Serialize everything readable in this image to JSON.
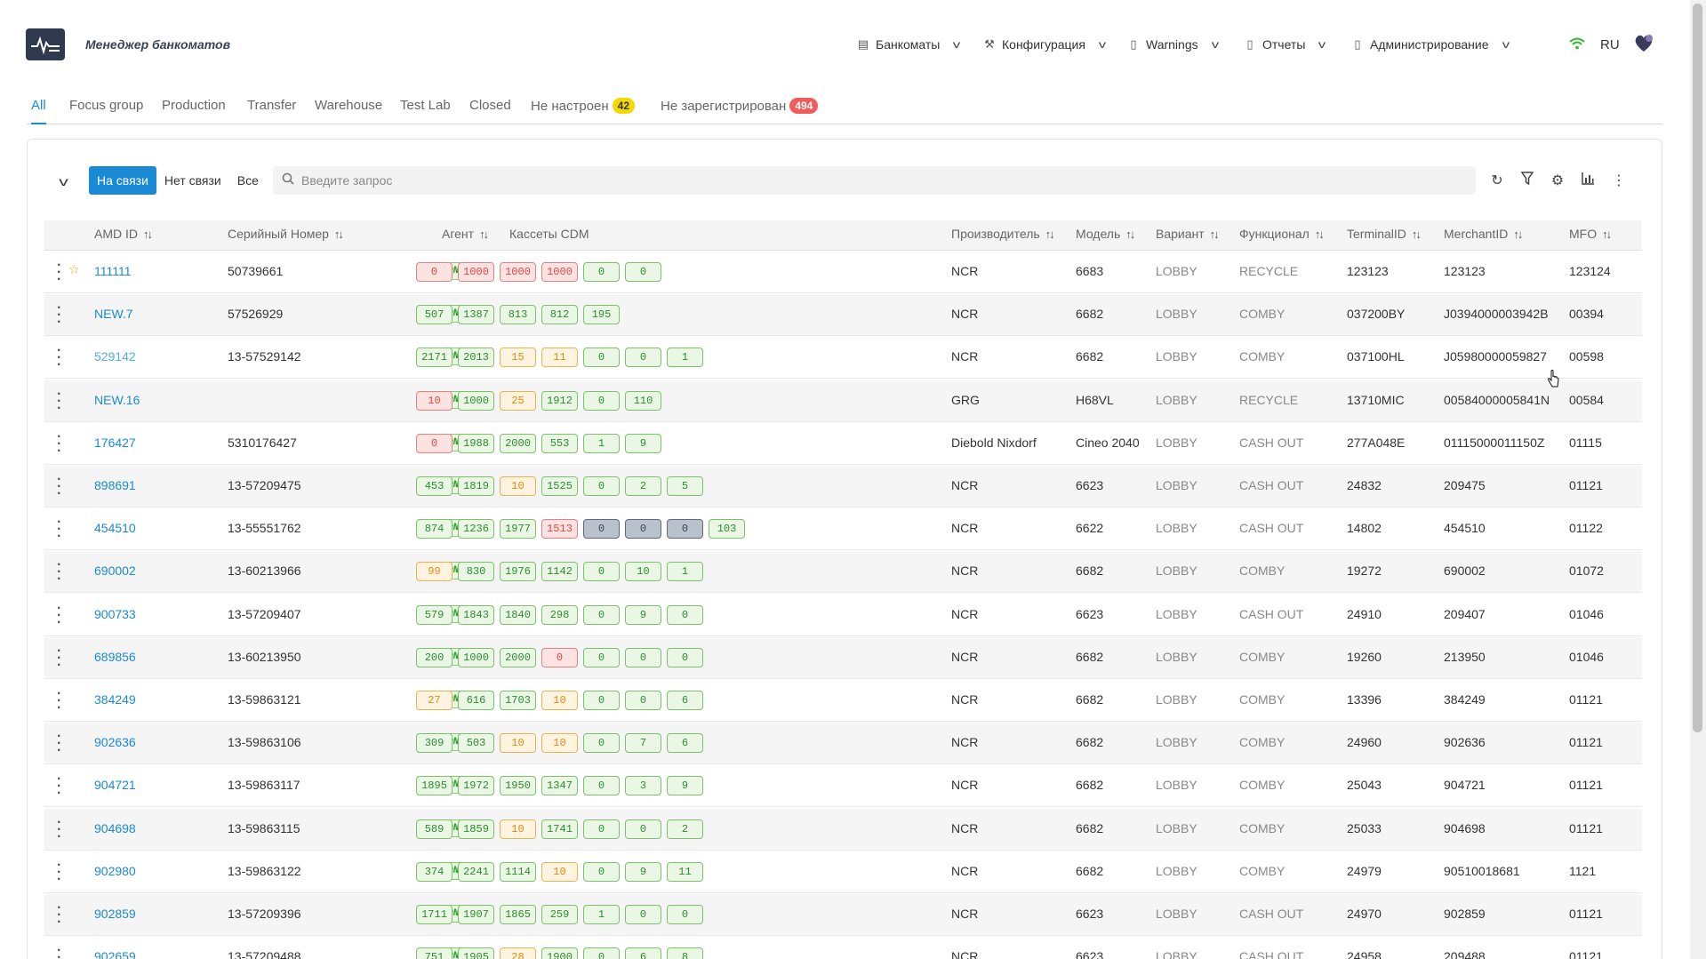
{
  "app": {
    "title": "Менеджер банкоматов"
  },
  "nav": [
    {
      "label": "Банкоматы",
      "icon": "atm-icon"
    },
    {
      "label": "Конфигурация",
      "icon": "wrench-icon"
    },
    {
      "label": "Warnings",
      "icon": "document-icon"
    },
    {
      "label": "Отчеты",
      "icon": "document-icon"
    },
    {
      "label": "Администрирование",
      "icon": "document-icon"
    }
  ],
  "header": {
    "lang": "RU"
  },
  "tabs": [
    {
      "label": "All"
    },
    {
      "label": "Focus group"
    },
    {
      "label": "Production"
    },
    {
      "label": "Transfer"
    },
    {
      "label": "Warehouse"
    },
    {
      "label": "Test Lab"
    },
    {
      "label": "Closed"
    },
    {
      "label": "Не настроен",
      "badge": "42"
    },
    {
      "label": "Не зарегистрирован",
      "badge": "494"
    }
  ],
  "filter": {
    "segments": [
      "На связи",
      "Нет связи",
      "Все"
    ],
    "search_placeholder": "Введите запрос"
  },
  "columns": [
    "AMD ID",
    "Серийный Номер",
    "Агент",
    "Кассеты CDM",
    "Производитель",
    "Модель",
    "Вариант",
    "Функционал",
    "TerminalID",
    "MerchantID",
    "MFO"
  ],
  "colors": {
    "accent": "#1a8ad4",
    "online": "#2e9b2e",
    "alert": "#e04848",
    "warning": "#e08a10"
  },
  "rows": [
    {
      "id": "111111",
      "serial": "50739661",
      "agent": "ONLINE",
      "starred": true,
      "cassettes": [
        [
          "0",
          "r"
        ],
        [
          "1000",
          "r"
        ],
        [
          "1000",
          "r"
        ],
        [
          "1000",
          "r"
        ],
        [
          "0",
          "g"
        ],
        [
          "0",
          "g"
        ]
      ],
      "vendor": "NCR",
      "model": "6683",
      "variant": "LOBBY",
      "func": "RECYCLE",
      "terminal": "123123",
      "merchant": "123123",
      "mfo": "123124"
    },
    {
      "id": "NEW.7",
      "serial": "57526929",
      "agent": "ONLINE",
      "cassettes": [
        [
          "507",
          "g"
        ],
        [
          "1387",
          "g"
        ],
        [
          "813",
          "g"
        ],
        [
          "812",
          "g"
        ],
        [
          "195",
          "g"
        ]
      ],
      "vendor": "NCR",
      "model": "6682",
      "variant": "LOBBY",
      "func": "COMBY",
      "terminal": "037200BY",
      "merchant": "J0394000003942B",
      "mfo": "00394"
    },
    {
      "id": "529142",
      "serial": "13-57529142",
      "agent": "ONLINE",
      "light": true,
      "cassettes": [
        [
          "2171",
          "g"
        ],
        [
          "2013",
          "g"
        ],
        [
          "15",
          "o"
        ],
        [
          "11",
          "o"
        ],
        [
          "0",
          "g"
        ],
        [
          "0",
          "g"
        ],
        [
          "1",
          "g"
        ]
      ],
      "vendor": "NCR",
      "model": "6682",
      "variant": "LOBBY",
      "func": "COMBY",
      "terminal": "037100HL",
      "merchant": "J05980000059827",
      "mfo": "00598"
    },
    {
      "id": "NEW.16",
      "serial": "",
      "agent": "ONLINE",
      "cassettes": [
        [
          "10",
          "r"
        ],
        [
          "1000",
          "g"
        ],
        [
          "25",
          "o"
        ],
        [
          "1912",
          "g"
        ],
        [
          "0",
          "g"
        ],
        [
          "110",
          "g"
        ]
      ],
      "vendor": "GRG",
      "model": "H68VL",
      "variant": "LOBBY",
      "func": "RECYCLE",
      "terminal": "13710MIC",
      "merchant": "00584000005841N",
      "mfo": "00584"
    },
    {
      "id": "176427",
      "serial": "5310176427",
      "agent": "ONLINE",
      "cassettes": [
        [
          "0",
          "r"
        ],
        [
          "1988",
          "g"
        ],
        [
          "2000",
          "g"
        ],
        [
          "553",
          "g"
        ],
        [
          "1",
          "g"
        ],
        [
          "9",
          "g"
        ]
      ],
      "vendor": "Diebold Nixdorf",
      "model": "Cineo 2040",
      "variant": "LOBBY",
      "func": "CASH OUT",
      "terminal": "277A048E",
      "merchant": "01115000011150Z",
      "mfo": "01115"
    },
    {
      "id": "898691",
      "serial": "13-57209475",
      "agent": "ONLINE",
      "cassettes": [
        [
          "453",
          "g"
        ],
        [
          "1819",
          "g"
        ],
        [
          "10",
          "o"
        ],
        [
          "1525",
          "g"
        ],
        [
          "0",
          "g"
        ],
        [
          "2",
          "g"
        ],
        [
          "5",
          "g"
        ]
      ],
      "vendor": "NCR",
      "model": "6623",
      "variant": "LOBBY",
      "func": "CASH OUT",
      "terminal": "24832",
      "merchant": "209475",
      "mfo": "01121"
    },
    {
      "id": "454510",
      "serial": "13-55551762",
      "agent": "ONLINE",
      "cassettes": [
        [
          "874",
          "g"
        ],
        [
          "1236",
          "g"
        ],
        [
          "1977",
          "g"
        ],
        [
          "1513",
          "r"
        ],
        [
          "0",
          "s"
        ],
        [
          "0",
          "s"
        ],
        [
          "0",
          "s"
        ],
        [
          "103",
          "g"
        ]
      ],
      "vendor": "NCR",
      "model": "6622",
      "variant": "LOBBY",
      "func": "CASH OUT",
      "terminal": "14802",
      "merchant": "454510",
      "mfo": "01122"
    },
    {
      "id": "690002",
      "serial": "13-60213966",
      "agent": "ONLINE",
      "cassettes": [
        [
          "99",
          "o"
        ],
        [
          "830",
          "g"
        ],
        [
          "1976",
          "g"
        ],
        [
          "1142",
          "g"
        ],
        [
          "0",
          "g"
        ],
        [
          "10",
          "g"
        ],
        [
          "1",
          "g"
        ]
      ],
      "vendor": "NCR",
      "model": "6682",
      "variant": "LOBBY",
      "func": "COMBY",
      "terminal": "19272",
      "merchant": "690002",
      "mfo": "01072"
    },
    {
      "id": "900733",
      "serial": "13-57209407",
      "agent": "ONLINE",
      "cassettes": [
        [
          "579",
          "g"
        ],
        [
          "1843",
          "g"
        ],
        [
          "1840",
          "g"
        ],
        [
          "298",
          "g"
        ],
        [
          "0",
          "g"
        ],
        [
          "9",
          "g"
        ],
        [
          "0",
          "g"
        ]
      ],
      "vendor": "NCR",
      "model": "6623",
      "variant": "LOBBY",
      "func": "CASH OUT",
      "terminal": "24910",
      "merchant": "209407",
      "mfo": "01046"
    },
    {
      "id": "689856",
      "serial": "13-60213950",
      "agent": "ONLINE",
      "cassettes": [
        [
          "200",
          "g"
        ],
        [
          "1000",
          "g"
        ],
        [
          "2000",
          "g"
        ],
        [
          "0",
          "r"
        ],
        [
          "0",
          "g"
        ],
        [
          "0",
          "g"
        ],
        [
          "0",
          "g"
        ]
      ],
      "vendor": "NCR",
      "model": "6682",
      "variant": "LOBBY",
      "func": "COMBY",
      "terminal": "19260",
      "merchant": "213950",
      "mfo": "01046"
    },
    {
      "id": "384249",
      "serial": "13-59863121",
      "agent": "ONLINE",
      "cassettes": [
        [
          "27",
          "o"
        ],
        [
          "616",
          "g"
        ],
        [
          "1703",
          "g"
        ],
        [
          "10",
          "o"
        ],
        [
          "0",
          "g"
        ],
        [
          "0",
          "g"
        ],
        [
          "6",
          "g"
        ]
      ],
      "vendor": "NCR",
      "model": "6682",
      "variant": "LOBBY",
      "func": "COMBY",
      "terminal": "13396",
      "merchant": "384249",
      "mfo": "01121"
    },
    {
      "id": "902636",
      "serial": "13-59863106",
      "agent": "ONLINE",
      "cassettes": [
        [
          "309",
          "g"
        ],
        [
          "503",
          "g"
        ],
        [
          "10",
          "o"
        ],
        [
          "10",
          "o"
        ],
        [
          "0",
          "g"
        ],
        [
          "7",
          "g"
        ],
        [
          "6",
          "g"
        ]
      ],
      "vendor": "NCR",
      "model": "6682",
      "variant": "LOBBY",
      "func": "COMBY",
      "terminal": "24960",
      "merchant": "902636",
      "mfo": "01121"
    },
    {
      "id": "904721",
      "serial": "13-59863117",
      "agent": "ONLINE",
      "cassettes": [
        [
          "1895",
          "g"
        ],
        [
          "1972",
          "g"
        ],
        [
          "1950",
          "g"
        ],
        [
          "1347",
          "g"
        ],
        [
          "0",
          "g"
        ],
        [
          "3",
          "g"
        ],
        [
          "9",
          "g"
        ]
      ],
      "vendor": "NCR",
      "model": "6682",
      "variant": "LOBBY",
      "func": "COMBY",
      "terminal": "25043",
      "merchant": "904721",
      "mfo": "01121"
    },
    {
      "id": "904698",
      "serial": "13-59863115",
      "agent": "ONLINE",
      "cassettes": [
        [
          "589",
          "g"
        ],
        [
          "1859",
          "g"
        ],
        [
          "10",
          "o"
        ],
        [
          "1741",
          "g"
        ],
        [
          "0",
          "g"
        ],
        [
          "0",
          "g"
        ],
        [
          "2",
          "g"
        ]
      ],
      "vendor": "NCR",
      "model": "6682",
      "variant": "LOBBY",
      "func": "COMBY",
      "terminal": "25033",
      "merchant": "904698",
      "mfo": "01121"
    },
    {
      "id": "902980",
      "serial": "13-59863122",
      "agent": "ONLINE",
      "cassettes": [
        [
          "374",
          "g"
        ],
        [
          "2241",
          "g"
        ],
        [
          "1114",
          "g"
        ],
        [
          "10",
          "o"
        ],
        [
          "0",
          "g"
        ],
        [
          "9",
          "g"
        ],
        [
          "11",
          "g"
        ]
      ],
      "vendor": "NCR",
      "model": "6682",
      "variant": "LOBBY",
      "func": "COMBY",
      "terminal": "24979",
      "merchant": "90510018681",
      "mfo": "1121"
    },
    {
      "id": "902859",
      "serial": "13-57209396",
      "agent": "ONLINE",
      "cassettes": [
        [
          "1711",
          "g"
        ],
        [
          "1907",
          "g"
        ],
        [
          "1865",
          "g"
        ],
        [
          "259",
          "g"
        ],
        [
          "1",
          "g"
        ],
        [
          "0",
          "g"
        ],
        [
          "0",
          "g"
        ]
      ],
      "vendor": "NCR",
      "model": "6623",
      "variant": "LOBBY",
      "func": "CASH OUT",
      "terminal": "24970",
      "merchant": "902859",
      "mfo": "01121"
    },
    {
      "id": "902659",
      "serial": "13-57209488",
      "agent": "ONLINE",
      "cassettes": [
        [
          "751",
          "g"
        ],
        [
          "1905",
          "g"
        ],
        [
          "28",
          "o"
        ],
        [
          "1900",
          "g"
        ],
        [
          "0",
          "g"
        ],
        [
          "6",
          "g"
        ],
        [
          "8",
          "g"
        ]
      ],
      "vendor": "NCR",
      "model": "6623",
      "variant": "LOBBY",
      "func": "CASH OUT",
      "terminal": "24958",
      "merchant": "209488",
      "mfo": "01121"
    }
  ]
}
